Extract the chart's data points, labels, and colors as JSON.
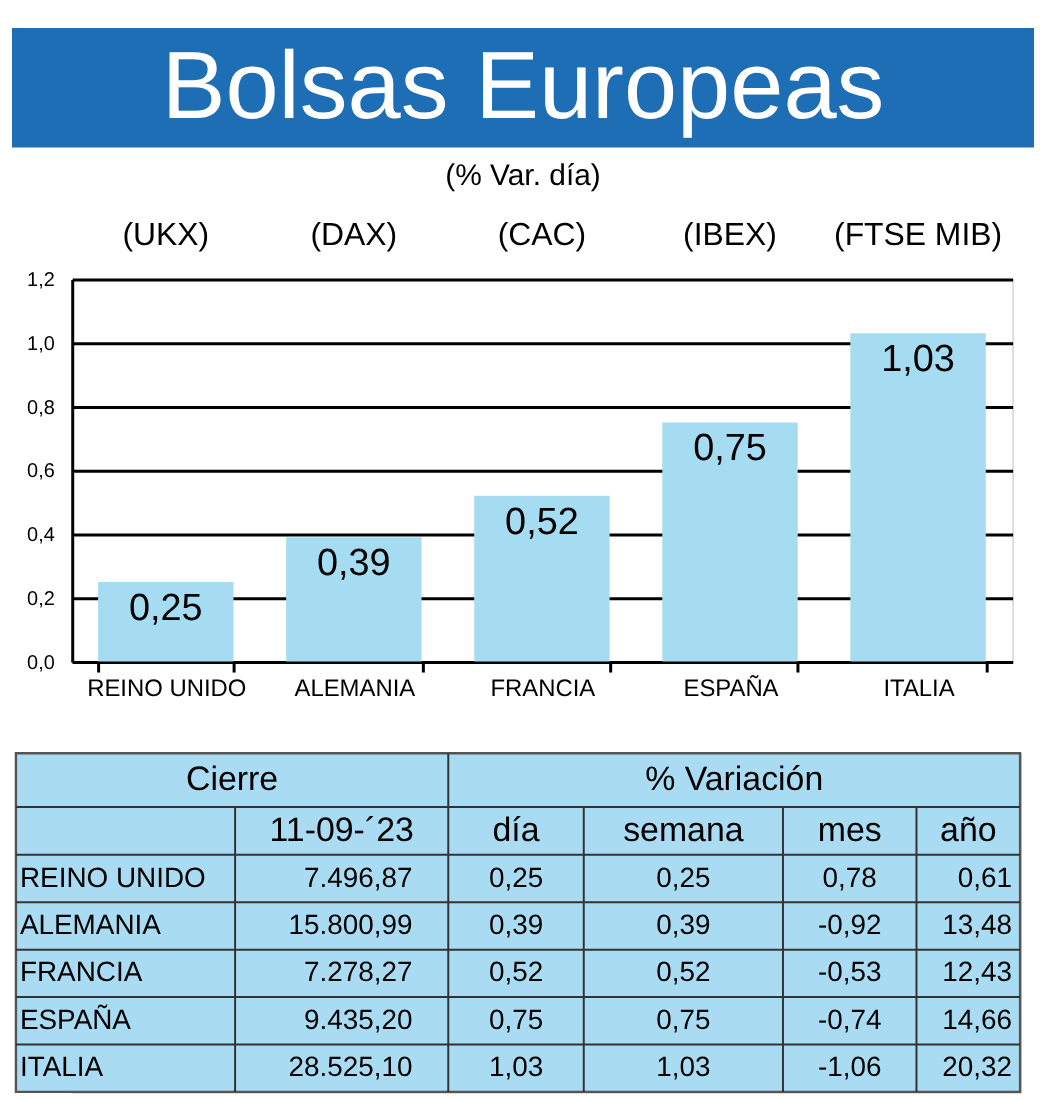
{
  "chart_data": [
    {
      "type": "bar",
      "title": "Bolsas Europeas",
      "subtitle": "(% Var. día)",
      "categories": [
        "REINO UNIDO",
        "ALEMANIA",
        "FRANCIA",
        "ESPAÑA",
        "ITALIA"
      ],
      "values": [
        0.25,
        0.39,
        0.52,
        0.75,
        1.03
      ],
      "value_labels": [
        "0,25",
        "0,39",
        "0,52",
        "0,75",
        "1,03"
      ],
      "color": "#a6dcf2",
      "ylim": [
        0,
        1.2
      ],
      "yticks": [
        {
          "value": 0,
          "label": "0,0"
        },
        {
          "value": 0.2,
          "label": "0,2"
        },
        {
          "value": 0.4,
          "label": "0,4"
        },
        {
          "value": 0.6,
          "label": "0,6"
        },
        {
          "value": 0.8,
          "label": "0,8"
        },
        {
          "value": 1,
          "label": "1,0"
        },
        {
          "value": 1.2,
          "label": "1,2"
        }
      ],
      "grid": "y",
      "annotations": [
        "(UKX)",
        "(DAX)",
        "(CAC)",
        "(IBEX)",
        "(FTSE MIB)"
      ]
    },
    {
      "type": "other",
      "color": "#a9dcf2",
      "annotations": [
        "Cierre",
        "% Variación"
      ],
      "categories": [
        "11-09-´23",
        "día",
        "semana",
        "mes",
        "año"
      ],
      "y_categories": [
        "REINO UNIDO",
        "ALEMANIA",
        "FRANCIA",
        "ESPAÑA",
        "ITALIA"
      ],
      "cells": [
        [
          "7.496,87",
          "0,25",
          "0,25",
          "0,78",
          "0,61"
        ],
        [
          "15.800,99",
          "0,39",
          "0,39",
          "-0,92",
          "13,48"
        ],
        [
          "7.278,27",
          "0,52",
          "0,52",
          "-0,53",
          "12,43"
        ],
        [
          "9.435,20",
          "0,75",
          "0,75",
          "-0,74",
          "14,66"
        ],
        [
          "28.525,10",
          "1,03",
          "1,03",
          "-1,06",
          "20,32"
        ]
      ]
    }
  ]
}
